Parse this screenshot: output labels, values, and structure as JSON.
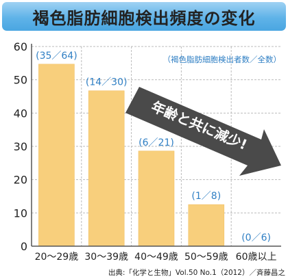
{
  "title": "褐色脂肪細胞検出頻度の変化",
  "chart_data": {
    "type": "bar",
    "categories": [
      "20～29歳",
      "30～39歳",
      "40～49歳",
      "50～59歳",
      "60歳以上"
    ],
    "values": [
      54.7,
      46.7,
      28.6,
      12.5,
      0
    ],
    "data_labels": [
      "(35／64)",
      "(14／30)",
      "(6／21)",
      "(1／8)",
      "(0／6)"
    ],
    "yticks": [
      "0",
      "10",
      "20",
      "30",
      "40",
      "50",
      "60"
    ],
    "ylim": [
      0,
      60
    ],
    "legend_note": "（褐色脂肪細胞検出者数／全数）",
    "annotation": "年齢と共に減少!",
    "source": "出典:「化学と生物」Vol.50 No.1（2012）／斉藤昌之",
    "grid": true,
    "bar_color": "#f8cf7c",
    "axis_color": "#555555"
  }
}
